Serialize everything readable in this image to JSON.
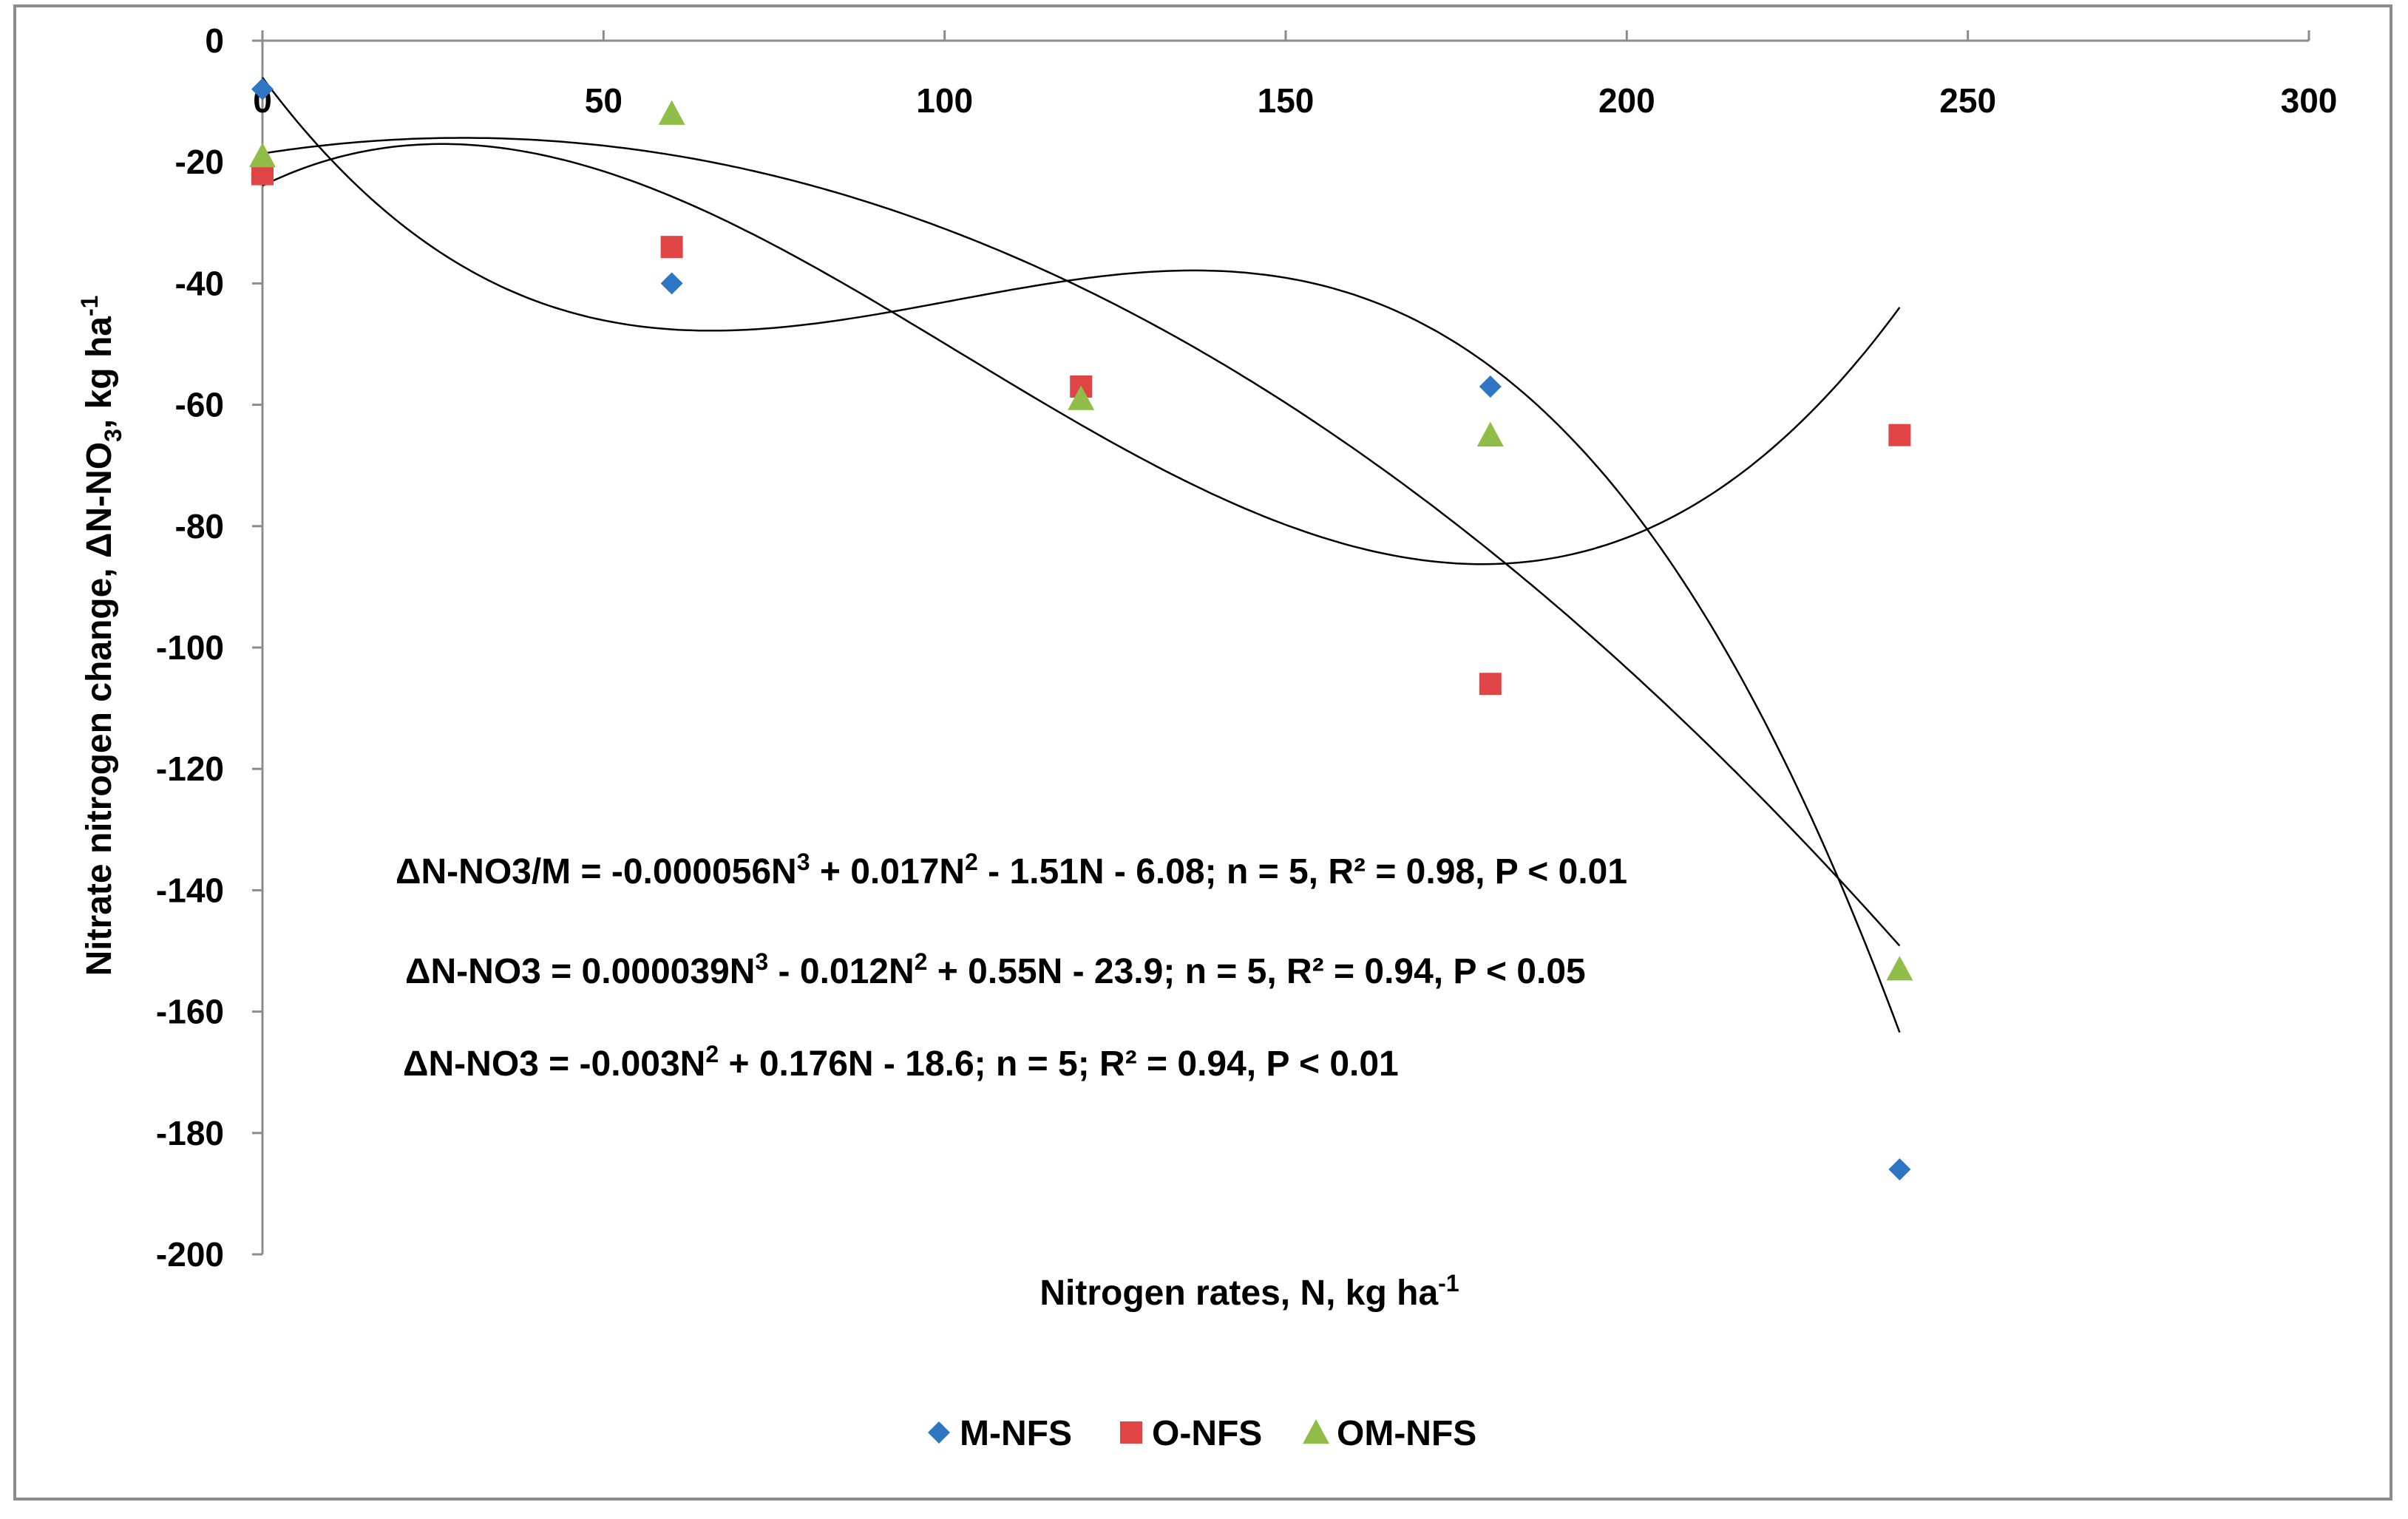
{
  "chart_data": {
    "type": "scatter",
    "title": "",
    "xlabel": "Nitrogen rates, N, kg ha",
    "xlabel_sup": "-1",
    "ylabel_parts": [
      "Nitrate nitrogen change, ΔN-NO",
      "3",
      ", kg ha",
      "-1"
    ],
    "xlim": [
      0,
      300
    ],
    "ylim": [
      -200,
      0
    ],
    "x_ticks": [
      0,
      50,
      100,
      150,
      200,
      250,
      300
    ],
    "y_ticks": [
      0,
      -20,
      -40,
      -60,
      -80,
      -100,
      -120,
      -140,
      -160,
      -180,
      -200
    ],
    "x_tick_labels": [
      "0",
      "50",
      "100",
      "150",
      "200",
      "250",
      "300"
    ],
    "y_tick_labels": [
      "0",
      "-20",
      "-40",
      "-60",
      "-80",
      "-100",
      "-120",
      "-140",
      "-160",
      "-180",
      "-200"
    ],
    "legend_position": "bottom",
    "series": [
      {
        "name": "M-NFS",
        "marker": "diamond",
        "color": "#2e75c3",
        "x": [
          0,
          60,
          120,
          180,
          240
        ],
        "y": [
          -8,
          -40,
          -57,
          -57,
          -186
        ],
        "trend": {
          "kind": "poly3",
          "coef": [
            -5.6e-05,
            0.017,
            -1.51,
            -6.08
          ]
        }
      },
      {
        "name": "O-NFS",
        "marker": "square",
        "color": "#e04444",
        "x": [
          0,
          60,
          120,
          180,
          240
        ],
        "y": [
          -22,
          -34,
          -57,
          -106,
          -65
        ],
        "trend": {
          "kind": "poly3",
          "coef": [
            3.9e-05,
            -0.012,
            0.55,
            -23.9
          ]
        }
      },
      {
        "name": "OM-NFS",
        "marker": "triangle",
        "color": "#8fbd47",
        "x": [
          0,
          60,
          120,
          180,
          240
        ],
        "y": [
          -19,
          -12,
          -59,
          -65,
          -153
        ],
        "trend": {
          "kind": "poly2",
          "coef": [
            -0.003,
            0.176,
            -18.6
          ]
        }
      }
    ],
    "annotations": [
      {
        "id": "eq1",
        "parts": [
          "ΔN-NO3/M = -0.000056N",
          "3",
          " + 0.017N",
          "2",
          " - 1.51N - 6.08; n = 5, R² = 0.98, P < 0.01"
        ]
      },
      {
        "id": "eq2",
        "parts": [
          "ΔN-NO3 = 0.000039N",
          "3",
          " - 0.012N",
          "2",
          " + 0.55N - 23.9; n = 5, R² = 0.94, P < 0.05"
        ]
      },
      {
        "id": "eq3",
        "parts": [
          "ΔN-NO3 = -0.003N",
          "2",
          " + 0.176N - 18.6; n = 5; R² = 0.94, P < 0.01"
        ]
      }
    ]
  }
}
